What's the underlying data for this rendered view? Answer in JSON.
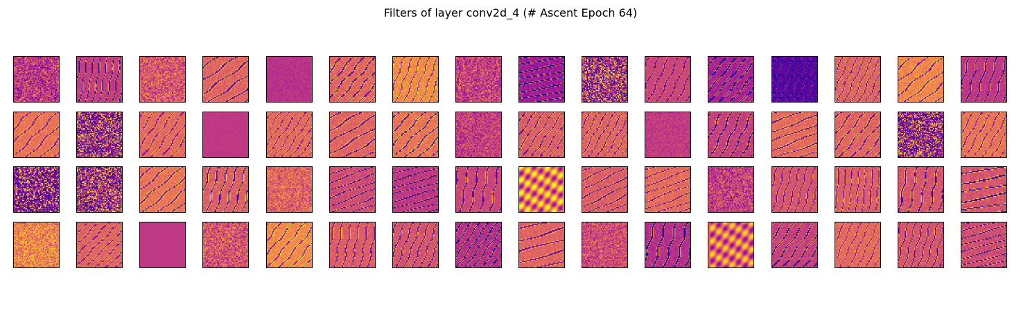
{
  "figure": {
    "title": "Filters of layer conv2d_4 (# Ascent Epoch 64)"
  },
  "colormap": {
    "name": "plasma",
    "stops": [
      "#0d0887",
      "#5402a3",
      "#8b0aa5",
      "#b93289",
      "#db5c68",
      "#f48849",
      "#febd2a",
      "#f0f921"
    ]
  },
  "filters": [
    {
      "id": 0,
      "base": 0.45,
      "pattern": "noise",
      "contrast": 0.35,
      "angle": 0
    },
    {
      "id": 1,
      "base": 0.47,
      "pattern": "stripes",
      "contrast": 0.35,
      "angle": 10
    },
    {
      "id": 2,
      "base": 0.55,
      "pattern": "noise",
      "contrast": 0.3,
      "angle": 0
    },
    {
      "id": 3,
      "base": 0.6,
      "pattern": "stripes",
      "contrast": 0.35,
      "angle": 55
    },
    {
      "id": 4,
      "base": 0.43,
      "pattern": "flat",
      "contrast": 0.1,
      "angle": 0
    },
    {
      "id": 5,
      "base": 0.6,
      "pattern": "stripes",
      "contrast": 0.4,
      "angle": 40
    },
    {
      "id": 6,
      "base": 0.72,
      "pattern": "stripes",
      "contrast": 0.35,
      "angle": 20
    },
    {
      "id": 7,
      "base": 0.48,
      "pattern": "noise",
      "contrast": 0.3,
      "angle": 0
    },
    {
      "id": 8,
      "base": 0.35,
      "pattern": "stripes",
      "contrast": 0.35,
      "angle": 80
    },
    {
      "id": 9,
      "base": 0.45,
      "pattern": "speckle",
      "contrast": 0.55,
      "angle": 0
    },
    {
      "id": 10,
      "base": 0.5,
      "pattern": "stripes",
      "contrast": 0.25,
      "angle": 25
    },
    {
      "id": 11,
      "base": 0.38,
      "pattern": "stripes",
      "contrast": 0.4,
      "angle": 40
    },
    {
      "id": 12,
      "base": 0.15,
      "pattern": "stripes",
      "contrast": 0.3,
      "angle": 30
    },
    {
      "id": 13,
      "base": 0.6,
      "pattern": "stripes",
      "contrast": 0.35,
      "angle": 25
    },
    {
      "id": 14,
      "base": 0.7,
      "pattern": "stripes",
      "contrast": 0.35,
      "angle": 50
    },
    {
      "id": 15,
      "base": 0.45,
      "pattern": "stripes",
      "contrast": 0.3,
      "angle": 15
    },
    {
      "id": 16,
      "base": 0.65,
      "pattern": "stripes",
      "contrast": 0.3,
      "angle": 45
    },
    {
      "id": 17,
      "base": 0.4,
      "pattern": "speckle",
      "contrast": 0.55,
      "angle": 0
    },
    {
      "id": 18,
      "base": 0.62,
      "pattern": "stripes",
      "contrast": 0.3,
      "angle": 35
    },
    {
      "id": 19,
      "base": 0.45,
      "pattern": "flat",
      "contrast": 0.05,
      "angle": 0
    },
    {
      "id": 20,
      "base": 0.62,
      "pattern": "stripes",
      "contrast": 0.3,
      "angle": 35
    },
    {
      "id": 21,
      "base": 0.6,
      "pattern": "stripes",
      "contrast": 0.35,
      "angle": 60
    },
    {
      "id": 22,
      "base": 0.65,
      "pattern": "stripes",
      "contrast": 0.4,
      "angle": 45
    },
    {
      "id": 23,
      "base": 0.48,
      "pattern": "noise",
      "contrast": 0.25,
      "angle": 0
    },
    {
      "id": 24,
      "base": 0.58,
      "pattern": "stripes",
      "contrast": 0.35,
      "angle": 35
    },
    {
      "id": 25,
      "base": 0.6,
      "pattern": "stripes",
      "contrast": 0.35,
      "angle": 30
    },
    {
      "id": 26,
      "base": 0.46,
      "pattern": "flat",
      "contrast": 0.15,
      "angle": 0
    },
    {
      "id": 27,
      "base": 0.48,
      "pattern": "stripes",
      "contrast": 0.35,
      "angle": 25
    },
    {
      "id": 28,
      "base": 0.62,
      "pattern": "stripes",
      "contrast": 0.35,
      "angle": 70
    },
    {
      "id": 29,
      "base": 0.6,
      "pattern": "stripes",
      "contrast": 0.35,
      "angle": 40
    },
    {
      "id": 30,
      "base": 0.4,
      "pattern": "speckle",
      "contrast": 0.5,
      "angle": 0
    },
    {
      "id": 31,
      "base": 0.65,
      "pattern": "stripes",
      "contrast": 0.3,
      "angle": 30
    },
    {
      "id": 32,
      "base": 0.32,
      "pattern": "speckle",
      "contrast": 0.35,
      "angle": 0
    },
    {
      "id": 33,
      "base": 0.45,
      "pattern": "speckle",
      "contrast": 0.55,
      "angle": 0
    },
    {
      "id": 34,
      "base": 0.65,
      "pattern": "stripes",
      "contrast": 0.35,
      "angle": 50
    },
    {
      "id": 35,
      "base": 0.58,
      "pattern": "stripes",
      "contrast": 0.4,
      "angle": 15
    },
    {
      "id": 36,
      "base": 0.6,
      "pattern": "noise",
      "contrast": 0.25,
      "angle": 0
    },
    {
      "id": 37,
      "base": 0.52,
      "pattern": "stripes",
      "contrast": 0.35,
      "angle": 70
    },
    {
      "id": 38,
      "base": 0.45,
      "pattern": "stripes",
      "contrast": 0.3,
      "angle": 75
    },
    {
      "id": 39,
      "base": 0.5,
      "pattern": "stripes",
      "contrast": 0.3,
      "angle": 10
    },
    {
      "id": 40,
      "base": 0.68,
      "pattern": "blobs",
      "contrast": 0.4,
      "angle": 0
    },
    {
      "id": 41,
      "base": 0.58,
      "pattern": "stripes",
      "contrast": 0.35,
      "angle": 65
    },
    {
      "id": 42,
      "base": 0.62,
      "pattern": "stripes",
      "contrast": 0.3,
      "angle": 70
    },
    {
      "id": 43,
      "base": 0.48,
      "pattern": "noise",
      "contrast": 0.3,
      "angle": 0
    },
    {
      "id": 44,
      "base": 0.55,
      "pattern": "stripes",
      "contrast": 0.3,
      "angle": 15
    },
    {
      "id": 45,
      "base": 0.58,
      "pattern": "stripes",
      "contrast": 0.3,
      "angle": 5
    },
    {
      "id": 46,
      "base": 0.55,
      "pattern": "stripes",
      "contrast": 0.35,
      "angle": 10
    },
    {
      "id": 47,
      "base": 0.55,
      "pattern": "stripes",
      "contrast": 0.4,
      "angle": 80
    },
    {
      "id": 48,
      "base": 0.7,
      "pattern": "noise",
      "contrast": 0.3,
      "angle": 0
    },
    {
      "id": 49,
      "base": 0.6,
      "pattern": "stripes",
      "contrast": 0.3,
      "angle": 45
    },
    {
      "id": 50,
      "base": 0.45,
      "pattern": "flat",
      "contrast": 0.0,
      "angle": 0
    },
    {
      "id": 51,
      "base": 0.55,
      "pattern": "noise",
      "contrast": 0.3,
      "angle": 0
    },
    {
      "id": 52,
      "base": 0.72,
      "pattern": "stripes",
      "contrast": 0.35,
      "angle": 40
    },
    {
      "id": 53,
      "base": 0.58,
      "pattern": "stripes",
      "contrast": 0.3,
      "angle": 10
    },
    {
      "id": 54,
      "base": 0.55,
      "pattern": "stripes",
      "contrast": 0.35,
      "angle": 20
    },
    {
      "id": 55,
      "base": 0.42,
      "pattern": "stripes",
      "contrast": 0.4,
      "angle": 35
    },
    {
      "id": 56,
      "base": 0.6,
      "pattern": "stripes",
      "contrast": 0.3,
      "angle": 75
    },
    {
      "id": 57,
      "base": 0.52,
      "pattern": "noise",
      "contrast": 0.25,
      "angle": 0
    },
    {
      "id": 58,
      "base": 0.42,
      "pattern": "stripes",
      "contrast": 0.35,
      "angle": 15
    },
    {
      "id": 59,
      "base": 0.62,
      "pattern": "blobs",
      "contrast": 0.35,
      "angle": 0
    },
    {
      "id": 60,
      "base": 0.48,
      "pattern": "stripes",
      "contrast": 0.35,
      "angle": 35
    },
    {
      "id": 61,
      "base": 0.62,
      "pattern": "stripes",
      "contrast": 0.25,
      "angle": 25
    },
    {
      "id": 62,
      "base": 0.55,
      "pattern": "stripes",
      "contrast": 0.35,
      "angle": 15
    },
    {
      "id": 63,
      "base": 0.52,
      "pattern": "stripes",
      "contrast": 0.35,
      "angle": 75
    }
  ]
}
